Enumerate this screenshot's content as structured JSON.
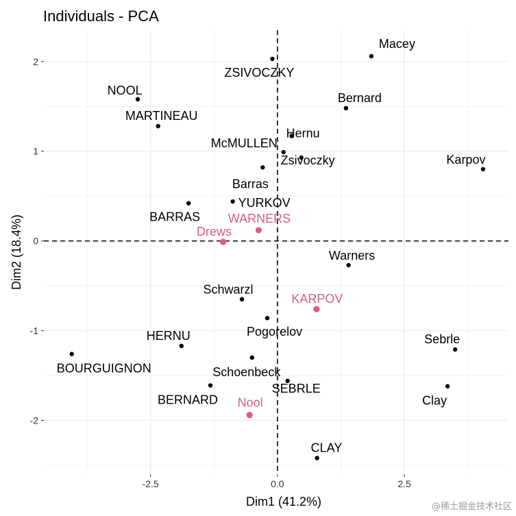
{
  "chart_data": {
    "type": "scatter",
    "title": "Individuals - PCA",
    "xlabel": "Dim1 (41.2%)",
    "ylabel": "Dim2 (18.4%)",
    "xlim": [
      -4.6,
      4.55
    ],
    "ylim": [
      -2.6,
      2.35
    ],
    "xticks": [
      -2.5,
      0,
      2.5
    ],
    "yticks": [
      -2,
      -1,
      0,
      1,
      2
    ],
    "xtick_labels": [
      "-2.5",
      "0.0",
      "2.5"
    ],
    "ytick_labels": [
      "-2",
      "-1",
      "0",
      "1",
      "2"
    ],
    "grid": true,
    "reference_lines": {
      "x": 0,
      "y": 0,
      "style": "dashed"
    },
    "colors": {
      "active": "#000000",
      "supplementary": "#d95f7a"
    },
    "series": [
      {
        "group": "active",
        "points": [
          {
            "label": "Macey",
            "x": 1.85,
            "y": 2.06
          },
          {
            "label": "ZSIVOCZKY",
            "x": -0.1,
            "y": 2.03
          },
          {
            "label": "Bernard",
            "x": 1.35,
            "y": 1.48
          },
          {
            "label": "NOOL",
            "x": -2.75,
            "y": 1.58
          },
          {
            "label": "MARTINEAU",
            "x": -2.35,
            "y": 1.28
          },
          {
            "label": "Hernu",
            "x": 0.28,
            "y": 1.17
          },
          {
            "label": "McMULLEN",
            "x": 0.12,
            "y": 0.99
          },
          {
            "label": "Zsivoczky",
            "x": 0.47,
            "y": 0.93
          },
          {
            "label": "Karpov",
            "x": 4.05,
            "y": 0.8
          },
          {
            "label": "Barras",
            "x": -0.29,
            "y": 0.82
          },
          {
            "label": "YURKOV",
            "x": -0.88,
            "y": 0.44
          },
          {
            "label": "BARRAS",
            "x": -1.75,
            "y": 0.42
          },
          {
            "label": "Warners",
            "x": 1.4,
            "y": -0.27
          },
          {
            "label": "Schwarzl",
            "x": -0.7,
            "y": -0.65
          },
          {
            "label": "Pogorelov",
            "x": -0.2,
            "y": -0.86
          },
          {
            "label": "HERNU",
            "x": -1.89,
            "y": -1.17
          },
          {
            "label": "BOURGUIGNON",
            "x": -4.05,
            "y": -1.26
          },
          {
            "label": "Sebrle",
            "x": 3.5,
            "y": -1.21
          },
          {
            "label": "Schoenbeck",
            "x": -0.5,
            "y": -1.3
          },
          {
            "label": "SEBRLE",
            "x": 0.2,
            "y": -1.56
          },
          {
            "label": "BERNARD",
            "x": -1.32,
            "y": -1.61
          },
          {
            "label": "Clay",
            "x": 3.35,
            "y": -1.62
          },
          {
            "label": "CLAY",
            "x": 0.78,
            "y": -2.42
          }
        ]
      },
      {
        "group": "supplementary",
        "points": [
          {
            "label": "WARNERS",
            "x": -0.37,
            "y": 0.12
          },
          {
            "label": "Drews",
            "x": -1.07,
            "y": -0.01
          },
          {
            "label": "KARPOV",
            "x": 0.77,
            "y": -0.76
          },
          {
            "label": "Nool",
            "x": -0.55,
            "y": -1.94
          }
        ]
      }
    ]
  },
  "watermark": "@稀土掘金技术社区"
}
